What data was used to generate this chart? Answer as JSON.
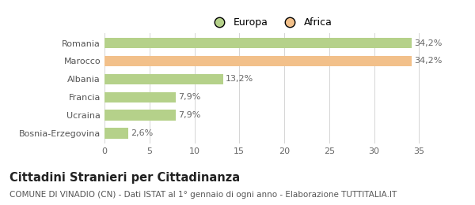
{
  "categories": [
    "Romania",
    "Marocco",
    "Albania",
    "Francia",
    "Ucraina",
    "Bosnia-Erzegovina"
  ],
  "values": [
    34.2,
    34.2,
    13.2,
    7.9,
    7.9,
    2.6
  ],
  "colors": [
    "#b5d18a",
    "#f2c08a",
    "#b5d18a",
    "#b5d18a",
    "#b5d18a",
    "#b5d18a"
  ],
  "labels": [
    "34,2%",
    "34,2%",
    "13,2%",
    "7,9%",
    "7,9%",
    "2,6%"
  ],
  "legend": [
    {
      "label": "Europa",
      "color": "#b5d18a"
    },
    {
      "label": "Africa",
      "color": "#f2c08a"
    }
  ],
  "xlim": [
    0,
    37
  ],
  "xticks": [
    0,
    5,
    10,
    15,
    20,
    25,
    30,
    35
  ],
  "title": "Cittadini Stranieri per Cittadinanza",
  "subtitle": "COMUNE DI VINADIO (CN) - Dati ISTAT al 1° gennaio di ogni anno - Elaborazione TUTTITALIA.IT",
  "title_fontsize": 10.5,
  "subtitle_fontsize": 7.5,
  "bar_label_fontsize": 8,
  "ytick_fontsize": 8,
  "xtick_fontsize": 8,
  "bg_color": "#ffffff",
  "grid_color": "#d5d5d5"
}
